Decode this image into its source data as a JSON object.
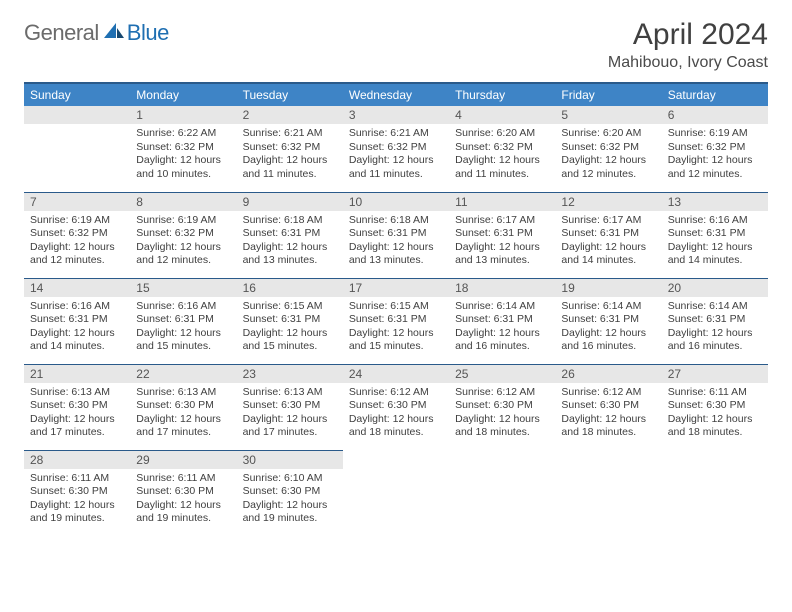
{
  "brand": {
    "general": "General",
    "blue": "Blue"
  },
  "title": "April 2024",
  "location": "Mahibouo, Ivory Coast",
  "colors": {
    "header_bg": "#3e84c6",
    "header_border": "#2a5a8a",
    "daynum_bg": "#e7e7e7",
    "text": "#404040",
    "logo_gray": "#6b6b6b",
    "logo_blue": "#1f6fb2"
  },
  "weekdays": [
    "Sunday",
    "Monday",
    "Tuesday",
    "Wednesday",
    "Thursday",
    "Friday",
    "Saturday"
  ],
  "weeks": [
    [
      {
        "n": "",
        "sr": "",
        "ss": "",
        "dl": ""
      },
      {
        "n": "1",
        "sr": "Sunrise: 6:22 AM",
        "ss": "Sunset: 6:32 PM",
        "dl": "Daylight: 12 hours and 10 minutes."
      },
      {
        "n": "2",
        "sr": "Sunrise: 6:21 AM",
        "ss": "Sunset: 6:32 PM",
        "dl": "Daylight: 12 hours and 11 minutes."
      },
      {
        "n": "3",
        "sr": "Sunrise: 6:21 AM",
        "ss": "Sunset: 6:32 PM",
        "dl": "Daylight: 12 hours and 11 minutes."
      },
      {
        "n": "4",
        "sr": "Sunrise: 6:20 AM",
        "ss": "Sunset: 6:32 PM",
        "dl": "Daylight: 12 hours and 11 minutes."
      },
      {
        "n": "5",
        "sr": "Sunrise: 6:20 AM",
        "ss": "Sunset: 6:32 PM",
        "dl": "Daylight: 12 hours and 12 minutes."
      },
      {
        "n": "6",
        "sr": "Sunrise: 6:19 AM",
        "ss": "Sunset: 6:32 PM",
        "dl": "Daylight: 12 hours and 12 minutes."
      }
    ],
    [
      {
        "n": "7",
        "sr": "Sunrise: 6:19 AM",
        "ss": "Sunset: 6:32 PM",
        "dl": "Daylight: 12 hours and 12 minutes."
      },
      {
        "n": "8",
        "sr": "Sunrise: 6:19 AM",
        "ss": "Sunset: 6:32 PM",
        "dl": "Daylight: 12 hours and 12 minutes."
      },
      {
        "n": "9",
        "sr": "Sunrise: 6:18 AM",
        "ss": "Sunset: 6:31 PM",
        "dl": "Daylight: 12 hours and 13 minutes."
      },
      {
        "n": "10",
        "sr": "Sunrise: 6:18 AM",
        "ss": "Sunset: 6:31 PM",
        "dl": "Daylight: 12 hours and 13 minutes."
      },
      {
        "n": "11",
        "sr": "Sunrise: 6:17 AM",
        "ss": "Sunset: 6:31 PM",
        "dl": "Daylight: 12 hours and 13 minutes."
      },
      {
        "n": "12",
        "sr": "Sunrise: 6:17 AM",
        "ss": "Sunset: 6:31 PM",
        "dl": "Daylight: 12 hours and 14 minutes."
      },
      {
        "n": "13",
        "sr": "Sunrise: 6:16 AM",
        "ss": "Sunset: 6:31 PM",
        "dl": "Daylight: 12 hours and 14 minutes."
      }
    ],
    [
      {
        "n": "14",
        "sr": "Sunrise: 6:16 AM",
        "ss": "Sunset: 6:31 PM",
        "dl": "Daylight: 12 hours and 14 minutes."
      },
      {
        "n": "15",
        "sr": "Sunrise: 6:16 AM",
        "ss": "Sunset: 6:31 PM",
        "dl": "Daylight: 12 hours and 15 minutes."
      },
      {
        "n": "16",
        "sr": "Sunrise: 6:15 AM",
        "ss": "Sunset: 6:31 PM",
        "dl": "Daylight: 12 hours and 15 minutes."
      },
      {
        "n": "17",
        "sr": "Sunrise: 6:15 AM",
        "ss": "Sunset: 6:31 PM",
        "dl": "Daylight: 12 hours and 15 minutes."
      },
      {
        "n": "18",
        "sr": "Sunrise: 6:14 AM",
        "ss": "Sunset: 6:31 PM",
        "dl": "Daylight: 12 hours and 16 minutes."
      },
      {
        "n": "19",
        "sr": "Sunrise: 6:14 AM",
        "ss": "Sunset: 6:31 PM",
        "dl": "Daylight: 12 hours and 16 minutes."
      },
      {
        "n": "20",
        "sr": "Sunrise: 6:14 AM",
        "ss": "Sunset: 6:31 PM",
        "dl": "Daylight: 12 hours and 16 minutes."
      }
    ],
    [
      {
        "n": "21",
        "sr": "Sunrise: 6:13 AM",
        "ss": "Sunset: 6:30 PM",
        "dl": "Daylight: 12 hours and 17 minutes."
      },
      {
        "n": "22",
        "sr": "Sunrise: 6:13 AM",
        "ss": "Sunset: 6:30 PM",
        "dl": "Daylight: 12 hours and 17 minutes."
      },
      {
        "n": "23",
        "sr": "Sunrise: 6:13 AM",
        "ss": "Sunset: 6:30 PM",
        "dl": "Daylight: 12 hours and 17 minutes."
      },
      {
        "n": "24",
        "sr": "Sunrise: 6:12 AM",
        "ss": "Sunset: 6:30 PM",
        "dl": "Daylight: 12 hours and 18 minutes."
      },
      {
        "n": "25",
        "sr": "Sunrise: 6:12 AM",
        "ss": "Sunset: 6:30 PM",
        "dl": "Daylight: 12 hours and 18 minutes."
      },
      {
        "n": "26",
        "sr": "Sunrise: 6:12 AM",
        "ss": "Sunset: 6:30 PM",
        "dl": "Daylight: 12 hours and 18 minutes."
      },
      {
        "n": "27",
        "sr": "Sunrise: 6:11 AM",
        "ss": "Sunset: 6:30 PM",
        "dl": "Daylight: 12 hours and 18 minutes."
      }
    ],
    [
      {
        "n": "28",
        "sr": "Sunrise: 6:11 AM",
        "ss": "Sunset: 6:30 PM",
        "dl": "Daylight: 12 hours and 19 minutes."
      },
      {
        "n": "29",
        "sr": "Sunrise: 6:11 AM",
        "ss": "Sunset: 6:30 PM",
        "dl": "Daylight: 12 hours and 19 minutes."
      },
      {
        "n": "30",
        "sr": "Sunrise: 6:10 AM",
        "ss": "Sunset: 6:30 PM",
        "dl": "Daylight: 12 hours and 19 minutes."
      },
      {
        "n": "",
        "sr": "",
        "ss": "",
        "dl": ""
      },
      {
        "n": "",
        "sr": "",
        "ss": "",
        "dl": ""
      },
      {
        "n": "",
        "sr": "",
        "ss": "",
        "dl": ""
      },
      {
        "n": "",
        "sr": "",
        "ss": "",
        "dl": ""
      }
    ]
  ]
}
